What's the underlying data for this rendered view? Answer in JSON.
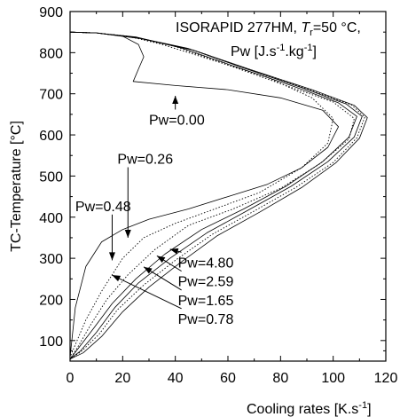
{
  "chart_data": {
    "type": "line",
    "title_lines": [
      "ISORAPID 277HM, Tr=50 °C,",
      "Pw [J.s-1.kg-1]"
    ],
    "title": {
      "line1_prefix": "ISORAPID 277HM, ",
      "line1_T": "T",
      "line1_sub": "r",
      "line1_suffix": "=50 °C,",
      "line2_prefix": "Pw [J.s",
      "line2_sup1": "-1",
      "line2_mid": ".kg",
      "line2_sup2": "-1",
      "line2_suffix": "]"
    },
    "xlabel": {
      "text": "Cooling rates [K.s",
      "sup": "-1",
      "suffix": "]"
    },
    "ylabel": "TC-Temperature [°C]",
    "xlim": [
      0,
      120
    ],
    "ylim": [
      50,
      900
    ],
    "xticks": [
      0,
      20,
      40,
      60,
      80,
      100,
      120
    ],
    "yticks": [
      100,
      200,
      300,
      400,
      500,
      600,
      700,
      800,
      900
    ],
    "grid": false,
    "legend": "none",
    "series": [
      {
        "name": "Pw=0.00",
        "style": "solid",
        "x": [
          0,
          10,
          20,
          26,
          28,
          26,
          24,
          40,
          60,
          80,
          96,
          102,
          98,
          88,
          75,
          60,
          45,
          30,
          20,
          12,
          6,
          2,
          0
        ],
        "y": [
          850,
          848,
          840,
          820,
          790,
          760,
          730,
          720,
          710,
          690,
          660,
          620,
          570,
          520,
          480,
          450,
          420,
          395,
          370,
          340,
          280,
          180,
          60
        ]
      },
      {
        "name": "Pw=0.26",
        "style": "dotted",
        "x": [
          0,
          10,
          22,
          35,
          55,
          75,
          92,
          100,
          98,
          88,
          72,
          55,
          40,
          28,
          20,
          12,
          6,
          2,
          0
        ],
        "y": [
          850,
          848,
          840,
          820,
          780,
          740,
          690,
          640,
          580,
          520,
          460,
          420,
          385,
          350,
          300,
          220,
          150,
          90,
          60
        ]
      },
      {
        "name": "Pw=0.48",
        "style": "dotted",
        "x": [
          0,
          10,
          24,
          40,
          60,
          82,
          100,
          108,
          106,
          95,
          80,
          62,
          45,
          32,
          22,
          14,
          8,
          3,
          0
        ],
        "y": [
          850,
          848,
          838,
          815,
          770,
          720,
          680,
          640,
          590,
          530,
          470,
          420,
          380,
          320,
          260,
          200,
          140,
          85,
          55
        ]
      },
      {
        "name": "Pw=0.78",
        "style": "solid",
        "x": [
          0,
          10,
          25,
          42,
          62,
          85,
          102,
          109,
          106,
          96,
          82,
          66,
          50,
          36,
          25,
          16,
          9,
          3,
          0
        ],
        "y": [
          850,
          848,
          838,
          812,
          768,
          718,
          678,
          645,
          595,
          535,
          475,
          420,
          370,
          310,
          250,
          190,
          130,
          80,
          55
        ]
      },
      {
        "name": "Pw=1.65",
        "style": "solid",
        "x": [
          0,
          10,
          26,
          45,
          65,
          88,
          105,
          111,
          108,
          98,
          84,
          68,
          52,
          38,
          26,
          17,
          10,
          4,
          0
        ],
        "y": [
          850,
          848,
          836,
          810,
          765,
          715,
          675,
          645,
          595,
          535,
          475,
          418,
          362,
          300,
          240,
          180,
          120,
          75,
          55
        ]
      },
      {
        "name": "Pw=2.59",
        "style": "dotted",
        "x": [
          0,
          10,
          26,
          46,
          67,
          90,
          107,
          112,
          109,
          100,
          86,
          70,
          54,
          40,
          28,
          18,
          11,
          4,
          0
        ],
        "y": [
          850,
          848,
          835,
          808,
          762,
          712,
          673,
          643,
          593,
          533,
          473,
          415,
          358,
          295,
          235,
          175,
          115,
          72,
          55
        ]
      },
      {
        "name": "Pw=4.80",
        "style": "solid",
        "x": [
          0,
          10,
          27,
          47,
          68,
          92,
          108,
          113,
          110,
          101,
          88,
          72,
          56,
          42,
          30,
          20,
          12,
          5,
          0
        ],
        "y": [
          850,
          848,
          834,
          806,
          760,
          710,
          672,
          642,
          592,
          532,
          472,
          412,
          355,
          290,
          230,
          170,
          110,
          70,
          55
        ]
      }
    ],
    "annotations": [
      {
        "label": "Pw=0.00",
        "x": 30,
        "y": 625,
        "arrow_to": [
          40,
          695
        ]
      },
      {
        "label": "Pw=0.26",
        "x": 18,
        "y": 530,
        "arrow_to": [
          22,
          350
        ]
      },
      {
        "label": "Pw=0.48",
        "x": 2,
        "y": 415,
        "arrow_to": [
          16,
          295
        ]
      },
      {
        "label": "Pw=4.80",
        "x": 41,
        "y": 278,
        "arrow_to": [
          38,
          322
        ]
      },
      {
        "label": "Pw=2.59",
        "x": 41,
        "y": 232,
        "arrow_to": [
          33,
          306
        ]
      },
      {
        "label": "Pw=1.65",
        "x": 41,
        "y": 186,
        "arrow_to": [
          28,
          279
        ]
      },
      {
        "label": "Pw=0.78",
        "x": 41,
        "y": 141,
        "arrow_to": [
          16,
          259
        ]
      }
    ]
  }
}
